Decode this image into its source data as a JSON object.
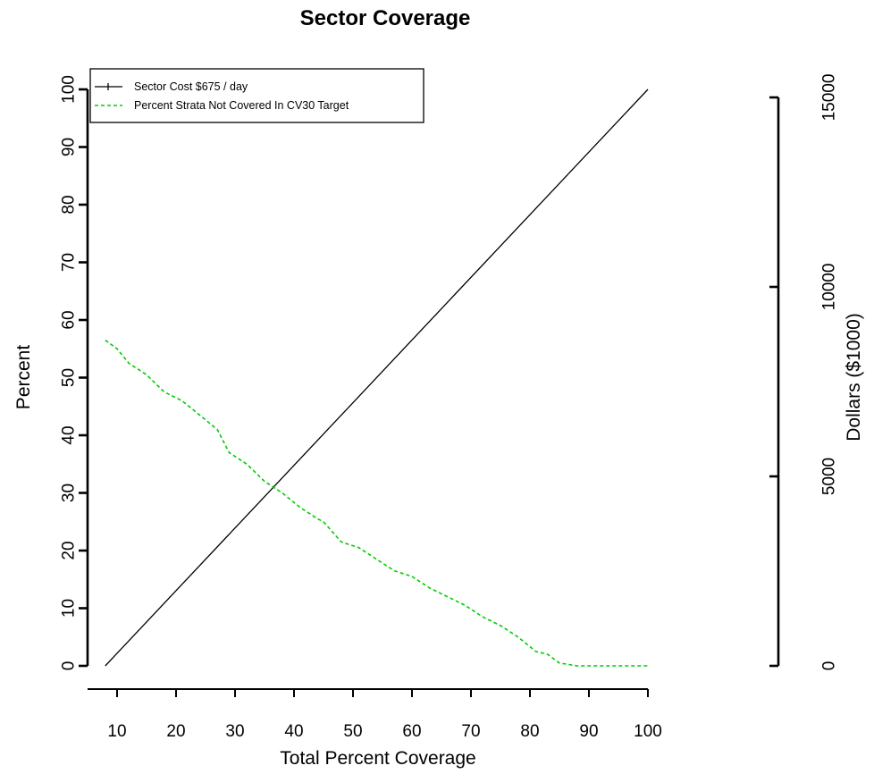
{
  "chart_data": {
    "type": "line",
    "title": "Sector Coverage",
    "xlabel": "Total Percent Coverage",
    "ylabel": "Percent",
    "y2label": "Dollars ($1000)",
    "xlim": [
      5,
      100
    ],
    "ylim": [
      0,
      100
    ],
    "y2lim": [
      0,
      15000
    ],
    "xticks": [
      10,
      20,
      30,
      40,
      50,
      60,
      70,
      80,
      90,
      100
    ],
    "yticks": [
      0,
      10,
      20,
      30,
      40,
      50,
      60,
      70,
      80,
      90,
      100
    ],
    "y2ticks": [
      0,
      5000,
      10000,
      15000
    ],
    "grid": false,
    "legend_position": "top-left",
    "series": [
      {
        "name": "Sector Cost $675 / day",
        "color": "#000000",
        "style": "solid",
        "x": [
          8,
          100
        ],
        "y": [
          0,
          100
        ]
      },
      {
        "name": "Percent Strata  Not Covered In CV30 Target",
        "color": "#00cc00",
        "style": "dashed",
        "x": [
          8,
          10,
          12,
          15,
          18,
          21,
          24,
          27,
          29,
          32,
          35,
          38,
          41,
          44,
          45,
          48,
          51,
          54,
          57,
          60,
          63,
          66,
          69,
          72,
          75,
          78,
          81,
          83,
          85,
          88,
          90,
          95,
          100
        ],
        "y": [
          56.5,
          55,
          52.5,
          50.5,
          47.5,
          46,
          43.5,
          41,
          37,
          35,
          32,
          30,
          27.5,
          25.5,
          25,
          21.5,
          20.5,
          18.5,
          16.5,
          15.5,
          13.5,
          12,
          10.5,
          8.5,
          7,
          5,
          2.5,
          2,
          0.5,
          0,
          0,
          0,
          0
        ]
      }
    ]
  }
}
